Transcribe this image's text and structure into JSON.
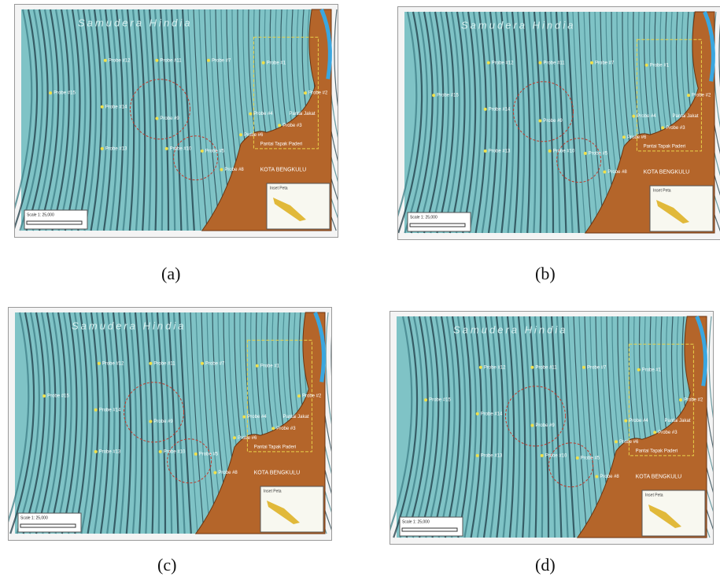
{
  "panels": [
    {
      "caption": "(a)"
    },
    {
      "caption": "(b)"
    },
    {
      "caption": "(c)"
    },
    {
      "caption": "(d)"
    }
  ],
  "map_labels": {
    "sea": "Samudera Hindia",
    "city": "KOTA BENGKULU",
    "beach_1": "Pantai Jakat",
    "beach_2": "Pantai Tapak Paderi",
    "inset": "Inset Peta",
    "scale": "Scale 1: 25,000",
    "probes": [
      "Probe #1",
      "Probe #2",
      "Probe #3",
      "Probe #4",
      "Probe #5",
      "Probe #6",
      "Probe #7",
      "Probe #8",
      "Probe #9",
      "Probe #10",
      "Probe #11",
      "Probe #12",
      "Probe #13",
      "Probe #14",
      "Probe #15"
    ]
  }
}
